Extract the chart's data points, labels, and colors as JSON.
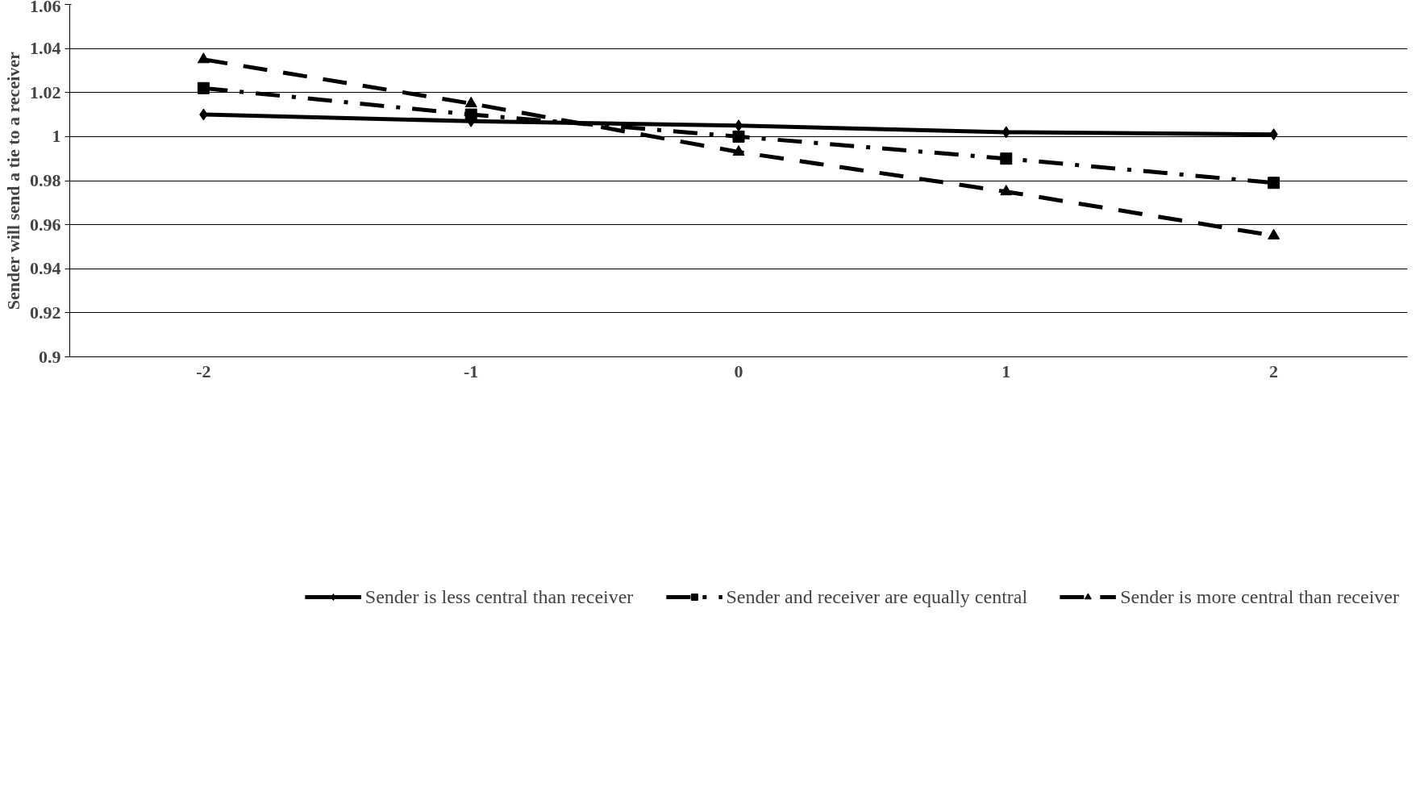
{
  "chart_data": {
    "type": "line",
    "ylabel": "Sender will send a tie to a receiver",
    "categories": [
      "-2",
      "-1",
      "0",
      "1",
      "2"
    ],
    "ylim": [
      0.9,
      1.06
    ],
    "yticks": [
      {
        "value": 0.9,
        "label": "0.9"
      },
      {
        "value": 0.92,
        "label": "0.92"
      },
      {
        "value": 0.94,
        "label": "0.94"
      },
      {
        "value": 0.96,
        "label": "0.96"
      },
      {
        "value": 0.98,
        "label": "0.98"
      },
      {
        "value": 1,
        "label": "1"
      },
      {
        "value": 1.02,
        "label": "1.02"
      },
      {
        "value": 1.04,
        "label": "1.04"
      },
      {
        "value": 1.06,
        "label": "1.06"
      }
    ],
    "grid": "y",
    "legend": "bottom",
    "series": [
      {
        "name": "Sender is less central than receiver",
        "color": "#000000",
        "marker": "diamond",
        "line_style": "solid",
        "values": [
          1.01,
          1.007,
          1.005,
          1.002,
          1.001
        ]
      },
      {
        "name": "Sender and receiver are equally central",
        "color": "#000000",
        "marker": "square",
        "line_style": "dashdot",
        "values": [
          1.022,
          1.01,
          1.0,
          0.99,
          0.979
        ]
      },
      {
        "name": "Sender is more central than receiver",
        "color": "#000000",
        "marker": "triangle",
        "line_style": "dashed",
        "values": [
          1.035,
          1.015,
          0.993,
          0.975,
          0.955
        ]
      }
    ]
  }
}
